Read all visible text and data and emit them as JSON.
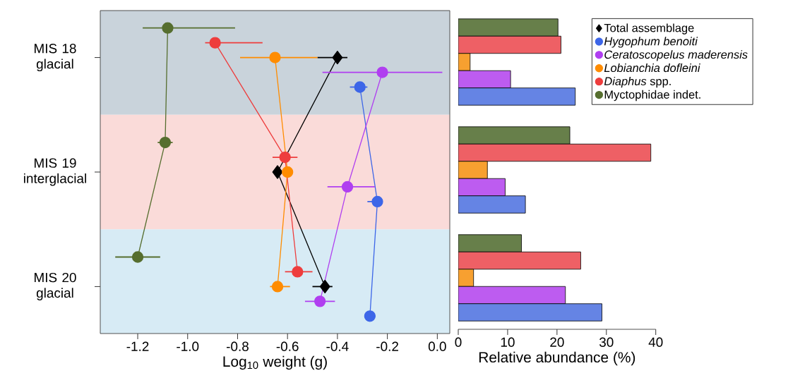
{
  "chart_data": [
    {
      "type": "line",
      "orientation": "horizontal",
      "categories": [
        "MIS 18 glacial",
        "MIS 19 interglacial",
        "MIS 20 glacial"
      ],
      "xlabel": "Log$_{10}$ weight (g)",
      "xlim": [
        -1.35,
        0.05
      ],
      "xticks": [
        -1.2,
        {
          "value": -1.0,
          "label": "-1.0"
        },
        -0.8,
        -0.6,
        -0.4,
        -0.2,
        {
          "value": 0.0,
          "label": "0.0"
        }
      ],
      "marker": "circle",
      "legend": "right",
      "bands": [
        {
          "axis": "y",
          "from": "MIS 18 glacial",
          "to": "MIS 18 glacial",
          "color": "#c9d3db"
        },
        {
          "axis": "y",
          "from": "MIS 19 interglacial",
          "to": "MIS 19 interglacial",
          "color": "#fadbd9"
        },
        {
          "axis": "y",
          "from": "MIS 20 glacial",
          "to": "MIS 20 glacial",
          "color": "#d7ebf5"
        }
      ],
      "series": [
        {
          "name": "Total assemblage",
          "color": "#000000",
          "marker": "diamond",
          "values": [
            -0.4,
            -0.64,
            -0.45
          ],
          "errors": [
            [
              -0.48,
              -0.36
            ],
            null,
            [
              -0.5,
              -0.42
            ]
          ]
        },
        {
          "name": "*Hygophum benoiti*",
          "color": "#3d66e8",
          "values": [
            -0.31,
            -0.24,
            -0.27
          ],
          "errors": [
            [
              -0.35,
              -0.28
            ],
            [
              -0.28,
              -0.22
            ],
            null
          ]
        },
        {
          "name": "*Ceratoscopelus maderensis*",
          "color": "#b03ff0",
          "values": [
            -0.22,
            -0.36,
            -0.47
          ],
          "errors": [
            [
              -0.46,
              0.02
            ],
            [
              -0.44,
              -0.25
            ],
            [
              -0.53,
              -0.41
            ]
          ]
        },
        {
          "name": "*Lobianchia dofleini*",
          "color": "#ff8c00",
          "values": [
            -0.65,
            -0.6,
            -0.64
          ],
          "errors": [
            [
              -0.79,
              -0.48
            ],
            [
              -0.62,
              -0.58
            ],
            [
              -0.67,
              -0.59
            ]
          ]
        },
        {
          "name": "*Diaphus* spp.",
          "color": "#ee3d3d",
          "values": [
            -0.89,
            -0.61,
            -0.56
          ],
          "errors": [
            [
              -0.93,
              -0.7
            ],
            [
              -0.66,
              -0.56
            ],
            [
              -0.61,
              -0.5
            ]
          ]
        },
        {
          "name": "Myctophidae indet.",
          "color": "#566e2f",
          "values": [
            -1.08,
            -1.09,
            -1.2
          ],
          "errors": [
            [
              -1.18,
              -0.81
            ],
            [
              -1.12,
              -1.06
            ],
            [
              -1.29,
              -1.11
            ]
          ]
        }
      ]
    },
    {
      "type": "bar",
      "orientation": "horizontal",
      "tick_labels": "x",
      "xlabel": "Relative abundance (%)",
      "xlim": [
        0,
        40
      ],
      "xticks": [
        0,
        10,
        20,
        30,
        40
      ],
      "series": [
        {
          "color": "#677f4a",
          "values": [
            20.2,
            22.6,
            12.8
          ]
        },
        {
          "color": "#ee6065",
          "values": [
            20.8,
            39.0,
            24.8
          ]
        },
        {
          "color": "#f7a030",
          "values": [
            2.4,
            5.9,
            3.1
          ]
        },
        {
          "color": "#bd5cf0",
          "values": [
            10.6,
            9.5,
            21.7
          ]
        },
        {
          "color": "#6584e4",
          "values": [
            23.7,
            13.6,
            29.1
          ]
        }
      ]
    }
  ]
}
